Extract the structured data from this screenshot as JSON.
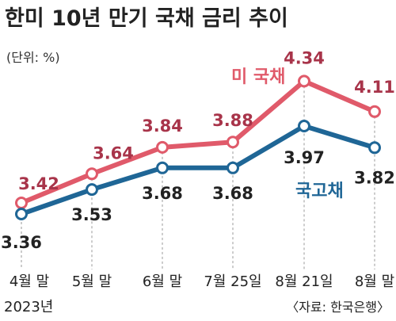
{
  "title": "한미 10년 만기 국채 금리 추이",
  "unit_label": "(단위: %)",
  "source_label": "〈자료: 한국은행〉",
  "colors": {
    "us": "#e05a6a",
    "kr": "#1f6696",
    "us_text": "#a8344a"
  },
  "chart_data": {
    "type": "line",
    "categories": [
      "4월 말",
      "5월 말",
      "6월 말",
      "7월 25일",
      "8월 21일",
      "8월 말"
    ],
    "year_label": "2023년",
    "series": [
      {
        "name": "미 국채",
        "values": [
          3.42,
          3.64,
          3.84,
          3.88,
          4.34,
          4.11
        ]
      },
      {
        "name": "국고채",
        "values": [
          3.36,
          3.53,
          3.68,
          3.68,
          3.97,
          3.82
        ]
      }
    ],
    "value_labels": [
      [
        "3.42",
        "3.64",
        "3.84",
        "3.88",
        "4.34",
        "4.11"
      ],
      [
        "3.36",
        "3.53",
        "3.68",
        "3.68",
        "3.97",
        "3.82"
      ]
    ]
  }
}
